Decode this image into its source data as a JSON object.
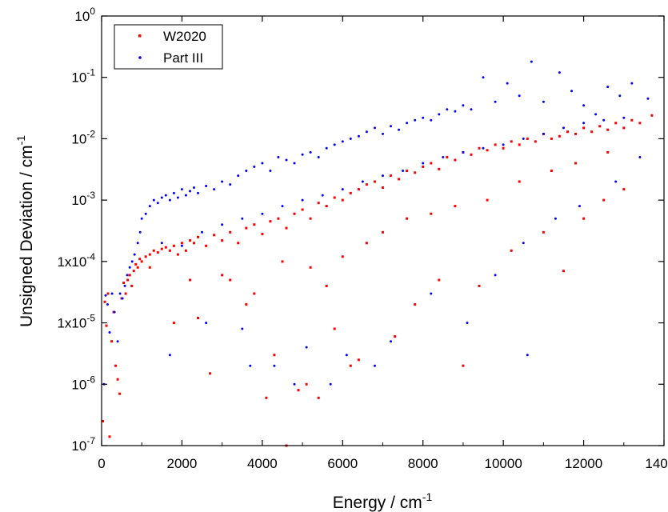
{
  "chart_data": {
    "type": "scatter",
    "title": "",
    "xlabel": "Energy / cm",
    "xlabel_sup": "-1",
    "ylabel": "Unsigned Deviation / cm",
    "ylabel_sup": "-1",
    "xlim": [
      0,
      14000
    ],
    "ylim": [
      1e-07,
      1
    ],
    "yscale": "log",
    "x_ticks": [
      0,
      2000,
      4000,
      6000,
      8000,
      10000,
      12000,
      14000
    ],
    "x_tick_labels": [
      "0",
      "2000",
      "4000",
      "6000",
      "8000",
      "10000",
      "12000",
      "14000"
    ],
    "y_ticks": [
      1e-07,
      1e-06,
      1e-05,
      0.0001,
      0.001,
      0.01,
      0.1,
      1
    ],
    "y_tick_labels": [
      {
        "base": "10",
        "sup": "-7"
      },
      {
        "base": "10",
        "sup": "-6"
      },
      {
        "base": "1x10",
        "sup": "-5"
      },
      {
        "base": "1x10",
        "sup": "-4"
      },
      {
        "base": "10",
        "sup": "-3"
      },
      {
        "base": "10",
        "sup": "-2"
      },
      {
        "base": "10",
        "sup": "-1"
      },
      {
        "base": "10",
        "sup": "0"
      }
    ],
    "grid": false,
    "legend_position": "top-left",
    "series": [
      {
        "name": "W2020",
        "color": "#ff0000",
        "marker": "square",
        "points": [
          [
            30,
            2.5e-07
          ],
          [
            80,
            2.2e-05
          ],
          [
            120,
            9e-06
          ],
          [
            160,
            3e-05
          ],
          [
            200,
            1.4e-07
          ],
          [
            250,
            5e-06
          ],
          [
            300,
            1.5e-05
          ],
          [
            350,
            2e-06
          ],
          [
            400,
            1.2e-06
          ],
          [
            450,
            7e-07
          ],
          [
            500,
            2.5e-05
          ],
          [
            550,
            4.5e-05
          ],
          [
            600,
            3e-05
          ],
          [
            650,
            5e-05
          ],
          [
            700,
            6e-05
          ],
          [
            750,
            4e-05
          ],
          [
            800,
            7e-05
          ],
          [
            850,
            9e-05
          ],
          [
            900,
            8e-05
          ],
          [
            950,
            0.00011
          ],
          [
            1000,
            0.0001
          ],
          [
            1100,
            0.00012
          ],
          [
            1200,
            0.00013
          ],
          [
            1300,
            0.00015
          ],
          [
            1400,
            0.00014
          ],
          [
            1500,
            0.00016
          ],
          [
            1600,
            0.00017
          ],
          [
            1700,
            0.00015
          ],
          [
            1800,
            0.00018
          ],
          [
            1900,
            0.00013
          ],
          [
            2000,
            0.0002
          ],
          [
            2100,
            0.00015
          ],
          [
            2200,
            0.00022
          ],
          [
            2300,
            0.0002
          ],
          [
            2400,
            0.00025
          ],
          [
            2600,
            0.00018
          ],
          [
            2800,
            0.00027
          ],
          [
            3000,
            0.00022
          ],
          [
            3200,
            0.0003
          ],
          [
            3400,
            0.0002
          ],
          [
            3600,
            0.00035
          ],
          [
            3800,
            0.0004
          ],
          [
            4000,
            0.00028
          ],
          [
            4200,
            0.00045
          ],
          [
            4400,
            0.0005
          ],
          [
            4600,
            0.00035
          ],
          [
            4800,
            0.0006
          ],
          [
            5000,
            0.0007
          ],
          [
            5200,
            0.0005
          ],
          [
            5400,
            0.0009
          ],
          [
            5600,
            0.0008
          ],
          [
            5800,
            0.0011
          ],
          [
            6000,
            0.001
          ],
          [
            6200,
            0.0013
          ],
          [
            6400,
            0.0015
          ],
          [
            6600,
            0.0018
          ],
          [
            6800,
            0.002
          ],
          [
            7000,
            0.0016
          ],
          [
            7200,
            0.0025
          ],
          [
            7400,
            0.0022
          ],
          [
            7600,
            0.003
          ],
          [
            7800,
            0.0028
          ],
          [
            8000,
            0.0035
          ],
          [
            8200,
            0.004
          ],
          [
            8400,
            0.0032
          ],
          [
            8600,
            0.005
          ],
          [
            8800,
            0.0045
          ],
          [
            9000,
            0.006
          ],
          [
            9200,
            0.0055
          ],
          [
            9400,
            0.007
          ],
          [
            9600,
            0.0065
          ],
          [
            9800,
            0.008
          ],
          [
            10000,
            0.007
          ],
          [
            10200,
            0.009
          ],
          [
            10400,
            0.008
          ],
          [
            10600,
            0.01
          ],
          [
            10800,
            0.009
          ],
          [
            11000,
            0.012
          ],
          [
            11200,
            0.01
          ],
          [
            11400,
            0.011
          ],
          [
            11600,
            0.013
          ],
          [
            11800,
            0.012
          ],
          [
            12000,
            0.015
          ],
          [
            12200,
            0.013
          ],
          [
            12400,
            0.016
          ],
          [
            12600,
            0.014
          ],
          [
            12800,
            0.018
          ],
          [
            13000,
            0.015
          ],
          [
            13200,
            0.02
          ],
          [
            13400,
            0.018
          ],
          [
            13700,
            0.024
          ],
          [
            1200,
            8e-05
          ],
          [
            1800,
            1e-05
          ],
          [
            2400,
            1.2e-05
          ],
          [
            2700,
            1.5e-06
          ],
          [
            3200,
            5e-05
          ],
          [
            3600,
            2e-05
          ],
          [
            4100,
            6e-07
          ],
          [
            4300,
            3e-06
          ],
          [
            4600,
            1e-07
          ],
          [
            4900,
            8e-07
          ],
          [
            5100,
            1e-06
          ],
          [
            5400,
            6e-07
          ],
          [
            5800,
            8e-06
          ],
          [
            6200,
            2e-06
          ],
          [
            6400,
            2.5e-06
          ],
          [
            7300,
            6e-06
          ],
          [
            7800,
            2e-05
          ],
          [
            8400,
            5e-05
          ],
          [
            9000,
            2e-06
          ],
          [
            9400,
            4e-05
          ],
          [
            10200,
            0.00015
          ],
          [
            11000,
            0.0003
          ],
          [
            11500,
            7e-05
          ],
          [
            12000,
            0.0005
          ],
          [
            12500,
            0.001
          ],
          [
            13000,
            0.0015
          ],
          [
            2200,
            5e-05
          ],
          [
            3000,
            6e-05
          ],
          [
            3800,
            3e-05
          ],
          [
            4500,
            0.0001
          ],
          [
            5200,
            8e-05
          ],
          [
            5600,
            4e-05
          ],
          [
            6000,
            0.00012
          ],
          [
            6600,
            0.0002
          ],
          [
            7000,
            0.0003
          ],
          [
            7600,
            0.0005
          ],
          [
            8200,
            0.0006
          ],
          [
            8800,
            0.0008
          ],
          [
            9600,
            0.001
          ],
          [
            10400,
            0.002
          ],
          [
            11200,
            0.003
          ],
          [
            11800,
            0.004
          ],
          [
            12600,
            0.006
          ]
        ]
      },
      {
        "name": "Part III",
        "color": "#0000ff",
        "marker": "circle",
        "points": [
          [
            60,
            1e-06
          ],
          [
            100,
            2.8e-05
          ],
          [
            150,
            2e-05
          ],
          [
            200,
            7e-06
          ],
          [
            260,
            3e-05
          ],
          [
            320,
            1.5e-05
          ],
          [
            400,
            5e-06
          ],
          [
            460,
            3e-05
          ],
          [
            520,
            2.5e-05
          ],
          [
            580,
            4e-05
          ],
          [
            640,
            6e-05
          ],
          [
            700,
            8e-05
          ],
          [
            760,
            0.0001
          ],
          [
            820,
            0.00013
          ],
          [
            900,
            0.0002
          ],
          [
            960,
            0.0003
          ],
          [
            1000,
            0.0005
          ],
          [
            1100,
            0.0006
          ],
          [
            1200,
            0.0008
          ],
          [
            1300,
            0.001
          ],
          [
            1400,
            0.0009
          ],
          [
            1500,
            0.0011
          ],
          [
            1600,
            0.0012
          ],
          [
            1700,
            0.001
          ],
          [
            1800,
            0.0013
          ],
          [
            1900,
            0.0011
          ],
          [
            2000,
            0.0015
          ],
          [
            2100,
            0.0012
          ],
          [
            2200,
            0.0014
          ],
          [
            2300,
            0.0016
          ],
          [
            2400,
            0.0013
          ],
          [
            2600,
            0.0017
          ],
          [
            2800,
            0.0015
          ],
          [
            3000,
            0.002
          ],
          [
            3200,
            0.0018
          ],
          [
            3400,
            0.0025
          ],
          [
            3600,
            0.003
          ],
          [
            3800,
            0.0035
          ],
          [
            4000,
            0.004
          ],
          [
            4200,
            0.003
          ],
          [
            4400,
            0.005
          ],
          [
            4600,
            0.0045
          ],
          [
            4800,
            0.004
          ],
          [
            5000,
            0.0055
          ],
          [
            5200,
            0.006
          ],
          [
            5400,
            0.005
          ],
          [
            5600,
            0.007
          ],
          [
            5800,
            0.008
          ],
          [
            6000,
            0.009
          ],
          [
            6200,
            0.01
          ],
          [
            6400,
            0.011
          ],
          [
            6600,
            0.013
          ],
          [
            6800,
            0.015
          ],
          [
            7000,
            0.012
          ],
          [
            7200,
            0.016
          ],
          [
            7400,
            0.014
          ],
          [
            7600,
            0.018
          ],
          [
            7800,
            0.02
          ],
          [
            8000,
            0.022
          ],
          [
            8200,
            0.02
          ],
          [
            8400,
            0.025
          ],
          [
            8600,
            0.03
          ],
          [
            8800,
            0.028
          ],
          [
            9000,
            0.035
          ],
          [
            9200,
            0.03
          ],
          [
            9500,
            0.1
          ],
          [
            9800,
            0.04
          ],
          [
            10100,
            0.08
          ],
          [
            10400,
            0.05
          ],
          [
            10700,
            0.18
          ],
          [
            11000,
            0.04
          ],
          [
            11400,
            0.12
          ],
          [
            11700,
            0.06
          ],
          [
            12000,
            0.035
          ],
          [
            12300,
            0.025
          ],
          [
            12600,
            0.07
          ],
          [
            12900,
            0.05
          ],
          [
            13200,
            0.08
          ],
          [
            13600,
            0.045
          ],
          [
            1500,
            0.0002
          ],
          [
            2000,
            0.00018
          ],
          [
            2500,
            0.0003
          ],
          [
            3000,
            0.0004
          ],
          [
            3500,
            0.0005
          ],
          [
            4000,
            0.0006
          ],
          [
            4500,
            0.0008
          ],
          [
            5000,
            0.001
          ],
          [
            5500,
            0.0012
          ],
          [
            6000,
            0.0015
          ],
          [
            6500,
            0.002
          ],
          [
            7000,
            0.0025
          ],
          [
            7500,
            0.003
          ],
          [
            8000,
            0.004
          ],
          [
            8500,
            0.005
          ],
          [
            9000,
            0.006
          ],
          [
            9500,
            0.007
          ],
          [
            10000,
            0.008
          ],
          [
            10500,
            0.01
          ],
          [
            11000,
            0.012
          ],
          [
            11500,
            0.015
          ],
          [
            12000,
            0.018
          ],
          [
            12500,
            0.02
          ],
          [
            13000,
            0.022
          ],
          [
            1700,
            3e-06
          ],
          [
            2600,
            1e-05
          ],
          [
            3500,
            8e-06
          ],
          [
            3700,
            2e-06
          ],
          [
            4300,
            2e-06
          ],
          [
            4800,
            1e-06
          ],
          [
            5100,
            4e-06
          ],
          [
            5700,
            1e-06
          ],
          [
            6100,
            3e-06
          ],
          [
            6800,
            2e-06
          ],
          [
            7200,
            5e-06
          ],
          [
            8200,
            3e-05
          ],
          [
            9100,
            1e-05
          ],
          [
            9800,
            6e-05
          ],
          [
            10500,
            0.0002
          ],
          [
            10600,
            3e-06
          ],
          [
            11300,
            0.0005
          ],
          [
            11900,
            0.0008
          ],
          [
            12800,
            0.002
          ],
          [
            13400,
            0.005
          ]
        ]
      }
    ]
  }
}
